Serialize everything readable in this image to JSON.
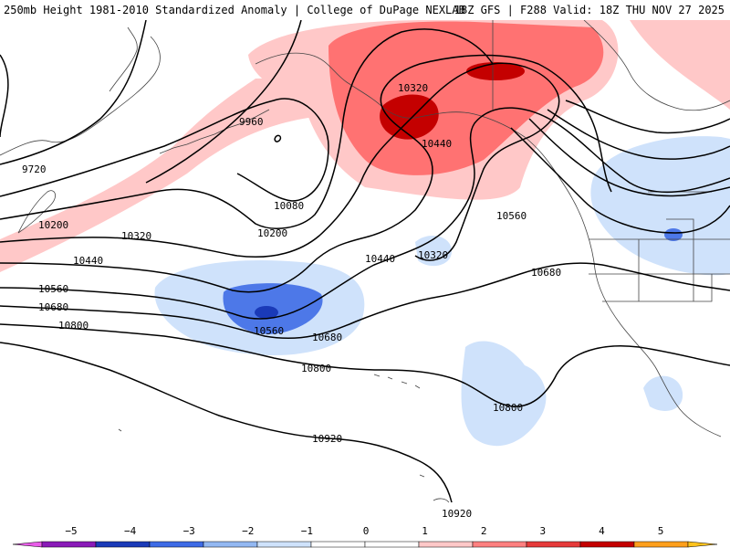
{
  "header": {
    "left_title": "250mb Height 1981-2010 Standardized Anomaly | College of DuPage NEXLAB",
    "right_title": "18Z GFS | F288 Valid: 18Z THU NOV 27 2025"
  },
  "contour_labels": [
    "9720",
    "9960",
    "10080",
    "10200",
    "10200",
    "10320",
    "10320",
    "10440",
    "10440",
    "10440",
    "10560",
    "10560",
    "10560",
    "10680",
    "10680",
    "10680",
    "10800",
    "10800",
    "10800",
    "10920",
    "10920",
    "10320"
  ],
  "colorbar": {
    "ticks": [
      "−5",
      "−4",
      "−3",
      "−2",
      "−1",
      "0",
      "1",
      "2",
      "3",
      "4",
      "5"
    ],
    "colors": [
      "#e85ce8",
      "#8a1ab8",
      "#1a3ab8",
      "#3d6be6",
      "#93b8f2",
      "#cfe2fb",
      "#ffffff",
      "#ffffff",
      "#ffc8c8",
      "#ff8080",
      "#e63a3a",
      "#c40000",
      "#ff9f1c",
      "#ffc21c"
    ]
  },
  "colors": {
    "contour": "#000000",
    "coast": "#444444",
    "pos1": "#ffc8c8",
    "pos2": "#ff7272",
    "pos3": "#c40000",
    "neg1": "#cfe2fb",
    "neg2": "#4d78e8",
    "neg3": "#1a3ab8"
  }
}
